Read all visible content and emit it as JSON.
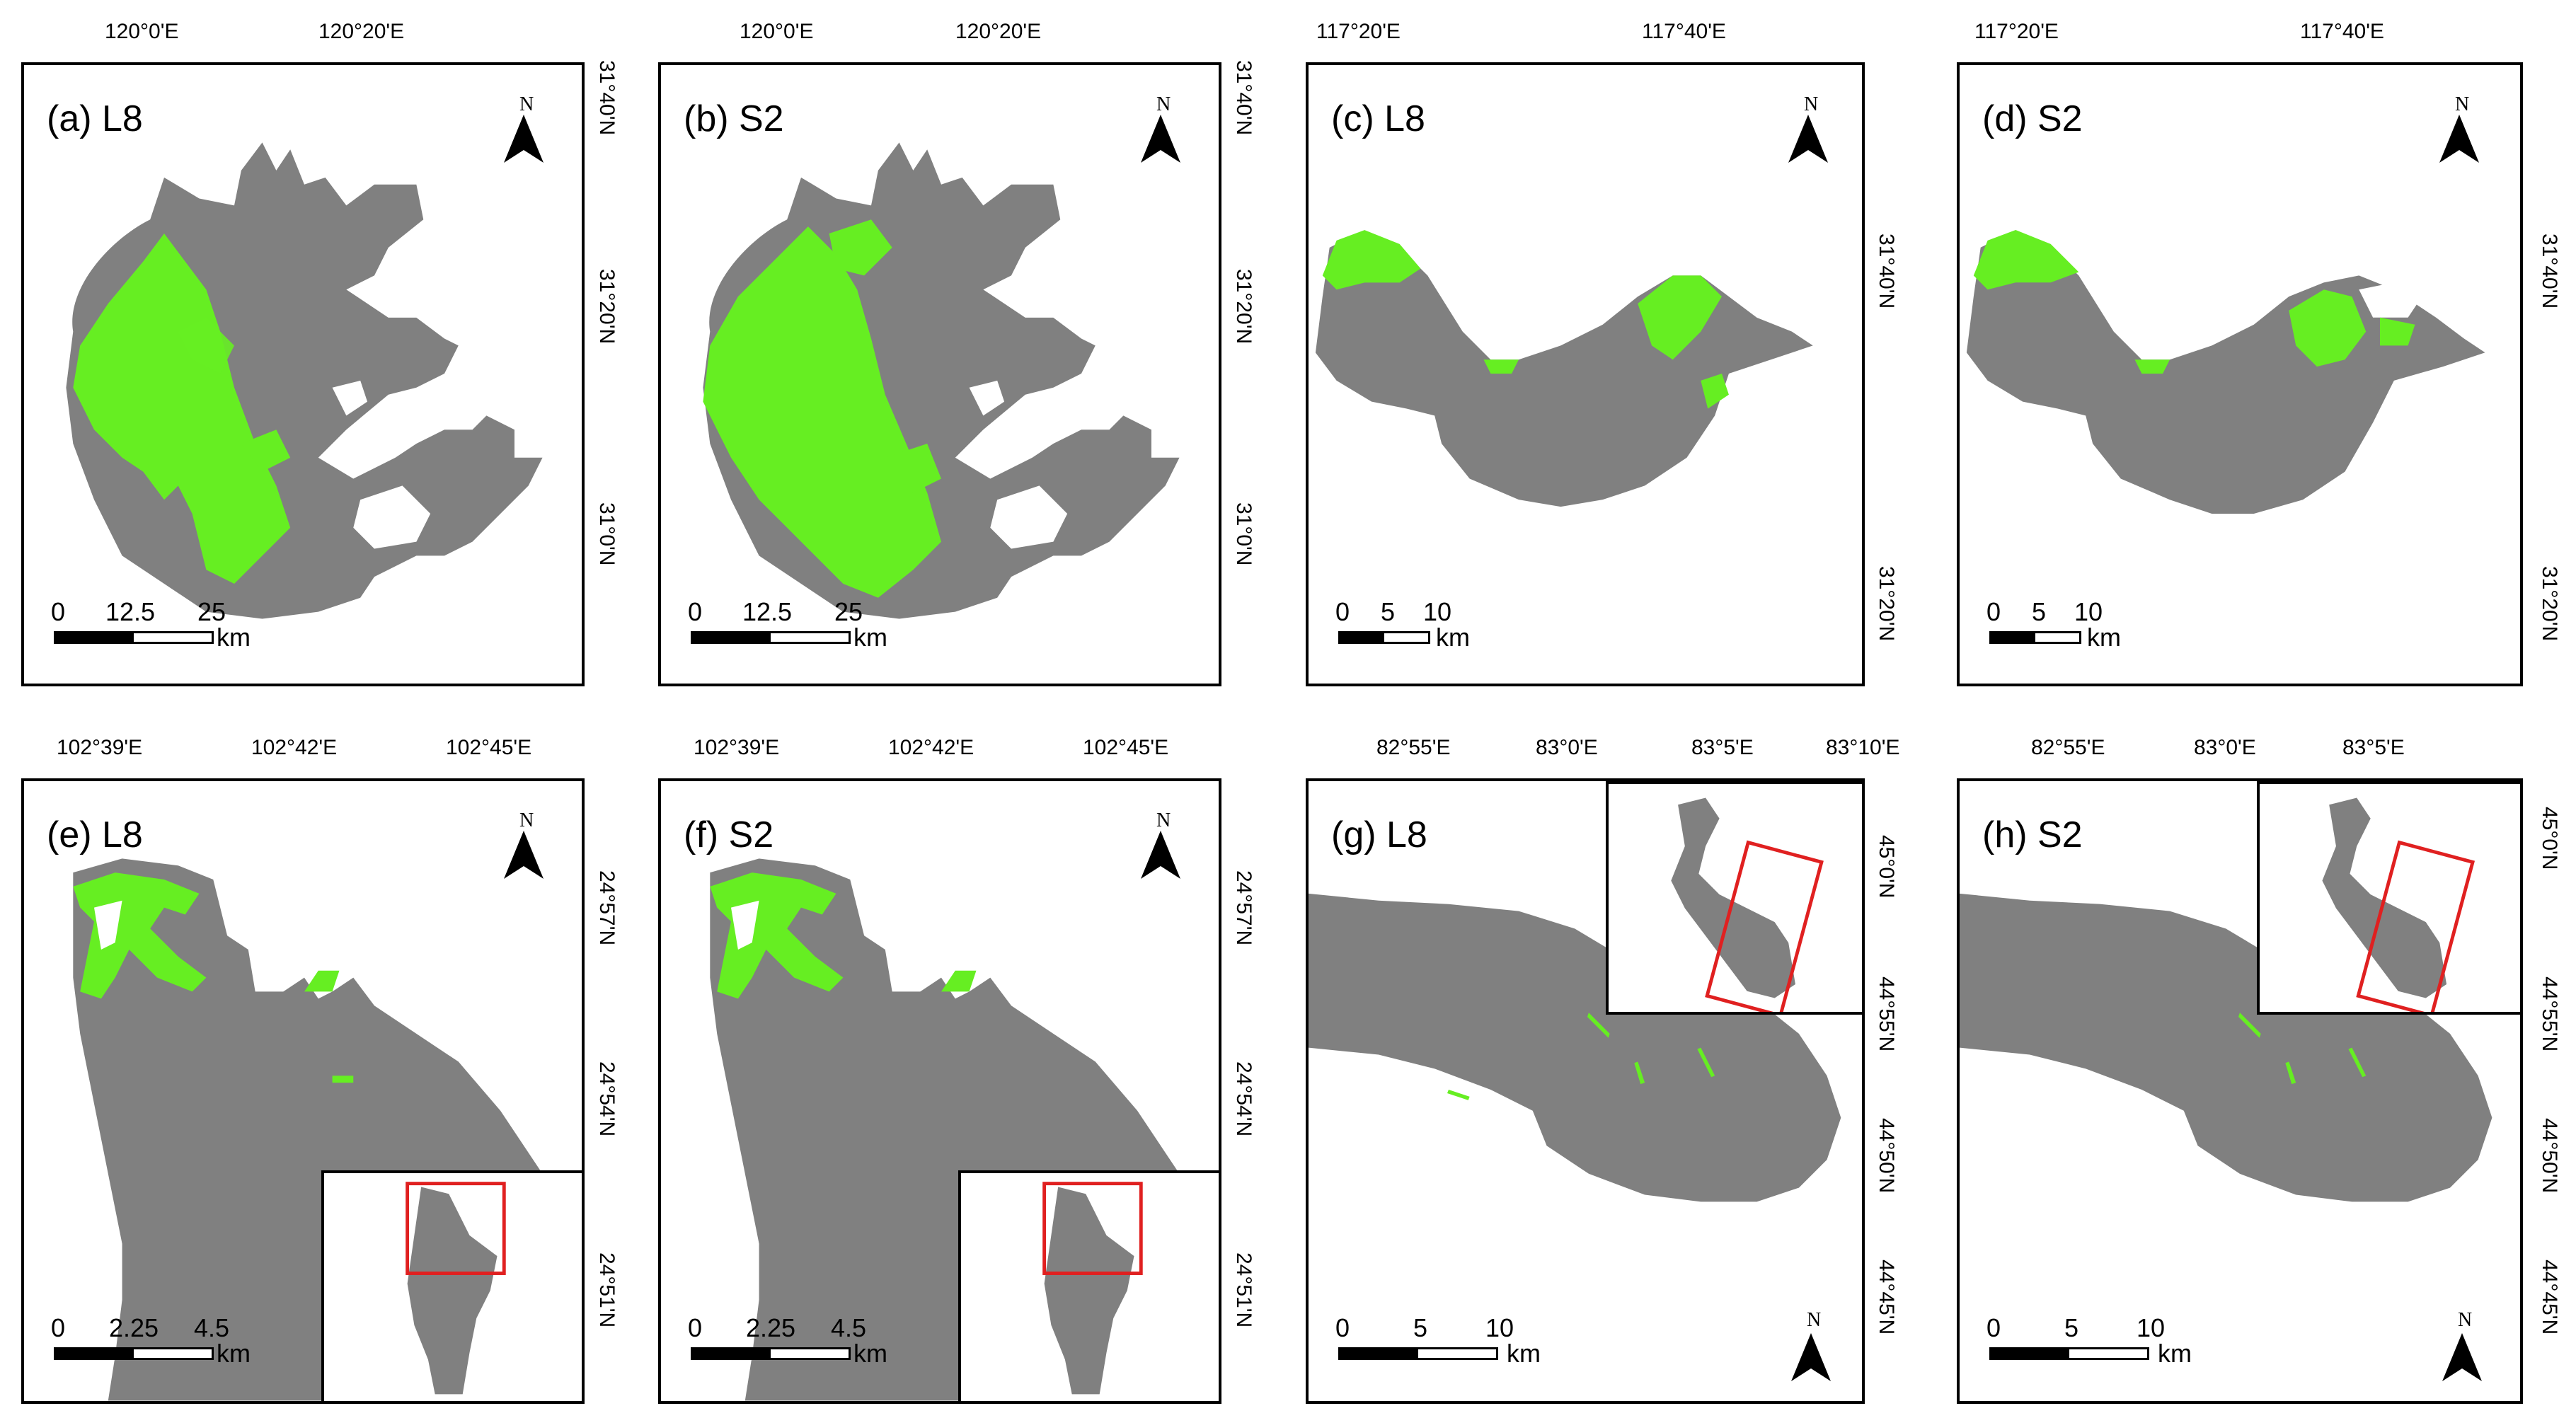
{
  "colors": {
    "lake": "#808080",
    "vegetation": "#66ee22",
    "frame": "#000000",
    "inset_box": "#e02020"
  },
  "north_label": "N",
  "scale_unit": "km",
  "panels": {
    "a": {
      "label": "(a) L8",
      "top_ticks": [
        "120°0'E",
        "120°20'E"
      ],
      "right_ticks": [
        "31°40'N",
        "31°20'N",
        "31°0'N"
      ],
      "scale_values": [
        "0",
        "12.5",
        "25"
      ]
    },
    "b": {
      "label": "(b) S2",
      "top_ticks": [
        "120°0'E",
        "120°20'E"
      ],
      "right_ticks": [
        "31°40'N",
        "31°20'N",
        "31°0'N"
      ],
      "scale_values": [
        "0",
        "12.5",
        "25"
      ]
    },
    "c": {
      "label": "(c) L8",
      "top_ticks": [
        "117°20'E",
        "117°40'E"
      ],
      "right_ticks": [
        "31°40'N",
        "31°20'N"
      ],
      "scale_values": [
        "0",
        "5",
        "10"
      ]
    },
    "d": {
      "label": "(d) S2",
      "top_ticks": [
        "117°20'E",
        "117°40'E"
      ],
      "right_ticks": [
        "31°40'N",
        "31°20'N"
      ],
      "scale_values": [
        "0",
        "5",
        "10"
      ]
    },
    "e": {
      "label": "(e) L8",
      "top_ticks": [
        "102°39'E",
        "102°42'E",
        "102°45'E"
      ],
      "right_ticks": [
        "24°57'N",
        "24°54'N",
        "24°51'N"
      ],
      "scale_values": [
        "0",
        "2.25",
        "4.5"
      ]
    },
    "f": {
      "label": "(f) S2",
      "top_ticks": [
        "102°39'E",
        "102°42'E",
        "102°45'E"
      ],
      "right_ticks": [
        "24°57'N",
        "24°54'N",
        "24°51'N"
      ],
      "scale_values": [
        "0",
        "2.25",
        "4.5"
      ]
    },
    "g": {
      "label": "(g) L8",
      "top_ticks": [
        "82°55'E",
        "83°0'E",
        "83°5'E",
        "83°10'E"
      ],
      "right_ticks": [
        "45°0'N",
        "44°55'N",
        "44°50'N",
        "44°45'N"
      ],
      "scale_values": [
        "0",
        "5",
        "10"
      ]
    },
    "h": {
      "label": "(h) S2",
      "top_ticks": [
        "82°55'E",
        "83°0'E",
        "83°5'E"
      ],
      "right_ticks": [
        "45°0'N",
        "44°55'N",
        "44°50'N",
        "44°45'N"
      ],
      "scale_values": [
        "0",
        "5",
        "10"
      ]
    }
  }
}
